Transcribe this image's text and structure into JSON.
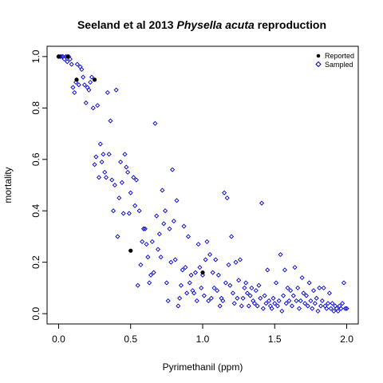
{
  "chart_data": {
    "type": "scatter",
    "title_prefix": "Seeland et al 2013 ",
    "title_italic": "Physella acuta",
    "title_suffix": " reproduction",
    "xlabel": "Pyrimethanil (ppm)",
    "ylabel": "mortality",
    "xlim": [
      -0.08,
      2.08
    ],
    "ylim": [
      -0.04,
      1.04
    ],
    "xticks": [
      0.0,
      0.5,
      1.0,
      1.5,
      2.0
    ],
    "xtick_labels": [
      "0.0",
      "0.5",
      "1.0",
      "1.5",
      "2.0"
    ],
    "yticks": [
      0.0,
      0.2,
      0.4,
      0.6,
      0.8,
      1.0
    ],
    "ytick_labels": [
      "0.0",
      "0.2",
      "0.4",
      "0.6",
      "0.8",
      "1.0"
    ],
    "legend": {
      "position": "top-right",
      "entries": [
        "Reported",
        "Sampled"
      ]
    },
    "series": [
      {
        "name": "Reported",
        "marker": "filled-circle",
        "color": "#000000",
        "points": [
          [
            0.0,
            1.0
          ],
          [
            0.0625,
            1.0
          ],
          [
            0.125,
            0.91
          ],
          [
            0.25,
            0.91
          ],
          [
            0.5,
            0.245
          ],
          [
            1.0,
            0.16
          ]
        ]
      },
      {
        "name": "Sampled",
        "marker": "open-diamond",
        "color": "#0000cc",
        "points": [
          [
            0.0,
            1.0
          ],
          [
            0.01,
            1.0
          ],
          [
            0.02,
            1.0
          ],
          [
            0.03,
            1.0
          ],
          [
            0.04,
            0.99
          ],
          [
            0.05,
            1.0
          ],
          [
            0.06,
            0.98
          ],
          [
            0.07,
            1.0
          ],
          [
            0.08,
            0.99
          ],
          [
            0.09,
            0.97
          ],
          [
            0.1,
            0.88
          ],
          [
            0.11,
            0.86
          ],
          [
            0.12,
            0.9
          ],
          [
            0.13,
            0.97
          ],
          [
            0.14,
            0.89
          ],
          [
            0.15,
            0.96
          ],
          [
            0.16,
            0.95
          ],
          [
            0.17,
            0.92
          ],
          [
            0.18,
            0.89
          ],
          [
            0.19,
            0.82
          ],
          [
            0.2,
            0.88
          ],
          [
            0.21,
            0.87
          ],
          [
            0.22,
            0.9
          ],
          [
            0.23,
            0.92
          ],
          [
            0.24,
            0.8
          ],
          [
            0.25,
            0.58
          ],
          [
            0.26,
            0.61
          ],
          [
            0.27,
            0.81
          ],
          [
            0.28,
            0.53
          ],
          [
            0.29,
            0.66
          ],
          [
            0.3,
            0.59
          ],
          [
            0.31,
            0.62
          ],
          [
            0.32,
            0.55
          ],
          [
            0.33,
            0.53
          ],
          [
            0.34,
            0.86
          ],
          [
            0.35,
            0.62
          ],
          [
            0.36,
            0.75
          ],
          [
            0.37,
            0.52
          ],
          [
            0.38,
            0.4
          ],
          [
            0.39,
            0.5
          ],
          [
            0.4,
            0.87
          ],
          [
            0.41,
            0.3
          ],
          [
            0.42,
            0.45
          ],
          [
            0.43,
            0.59
          ],
          [
            0.44,
            0.51
          ],
          [
            0.45,
            0.39
          ],
          [
            0.46,
            0.62
          ],
          [
            0.47,
            0.57
          ],
          [
            0.48,
            0.55
          ],
          [
            0.49,
            0.39
          ],
          [
            0.5,
            0.47
          ],
          [
            0.52,
            0.53
          ],
          [
            0.53,
            0.42
          ],
          [
            0.54,
            0.52
          ],
          [
            0.55,
            0.11
          ],
          [
            0.56,
            0.4
          ],
          [
            0.57,
            0.19
          ],
          [
            0.58,
            0.28
          ],
          [
            0.59,
            0.33
          ],
          [
            0.6,
            0.33
          ],
          [
            0.61,
            0.27
          ],
          [
            0.62,
            0.22
          ],
          [
            0.63,
            0.12
          ],
          [
            0.64,
            0.15
          ],
          [
            0.65,
            0.28
          ],
          [
            0.66,
            0.16
          ],
          [
            0.67,
            0.74
          ],
          [
            0.68,
            0.38
          ],
          [
            0.69,
            0.25
          ],
          [
            0.7,
            0.31
          ],
          [
            0.71,
            0.22
          ],
          [
            0.72,
            0.48
          ],
          [
            0.73,
            0.35
          ],
          [
            0.74,
            0.4
          ],
          [
            0.75,
            0.12
          ],
          [
            0.76,
            0.05
          ],
          [
            0.77,
            0.33
          ],
          [
            0.78,
            0.2
          ],
          [
            0.79,
            0.56
          ],
          [
            0.8,
            0.36
          ],
          [
            0.81,
            0.21
          ],
          [
            0.82,
            0.44
          ],
          [
            0.83,
            0.03
          ],
          [
            0.84,
            0.06
          ],
          [
            0.85,
            0.11
          ],
          [
            0.86,
            0.17
          ],
          [
            0.87,
            0.34
          ],
          [
            0.88,
            0.18
          ],
          [
            0.89,
            0.08
          ],
          [
            0.9,
            0.3
          ],
          [
            0.91,
            0.12
          ],
          [
            0.92,
            0.15
          ],
          [
            0.93,
            0.09
          ],
          [
            0.94,
            0.08
          ],
          [
            0.95,
            0.16
          ],
          [
            0.96,
            0.05
          ],
          [
            0.97,
            0.27
          ],
          [
            0.98,
            0.18
          ],
          [
            0.99,
            0.1
          ],
          [
            1.0,
            0.15
          ],
          [
            1.01,
            0.07
          ],
          [
            1.02,
            0.21
          ],
          [
            1.03,
            0.28
          ],
          [
            1.04,
            0.05
          ],
          [
            1.05,
            0.23
          ],
          [
            1.06,
            0.06
          ],
          [
            1.07,
            0.16
          ],
          [
            1.08,
            0.1
          ],
          [
            1.09,
            0.21
          ],
          [
            1.1,
            0.09
          ],
          [
            1.11,
            0.15
          ],
          [
            1.12,
            0.03
          ],
          [
            1.13,
            0.06
          ],
          [
            1.14,
            0.05
          ],
          [
            1.15,
            0.47
          ],
          [
            1.16,
            0.12
          ],
          [
            1.17,
            0.45
          ],
          [
            1.18,
            0.19
          ],
          [
            1.19,
            0.11
          ],
          [
            1.2,
            0.3
          ],
          [
            1.21,
            0.08
          ],
          [
            1.22,
            0.04
          ],
          [
            1.23,
            0.2
          ],
          [
            1.24,
            0.06
          ],
          [
            1.25,
            0.13
          ],
          [
            1.26,
            0.21
          ],
          [
            1.27,
            0.03
          ],
          [
            1.28,
            0.06
          ],
          [
            1.29,
            0.1
          ],
          [
            1.3,
            0.12
          ],
          [
            1.31,
            0.08
          ],
          [
            1.32,
            0.03
          ],
          [
            1.33,
            0.07
          ],
          [
            1.34,
            0.1
          ],
          [
            1.35,
            0.05
          ],
          [
            1.36,
            0.04
          ],
          [
            1.37,
            0.09
          ],
          [
            1.38,
            0.03
          ],
          [
            1.39,
            0.11
          ],
          [
            1.4,
            0.06
          ],
          [
            1.41,
            0.43
          ],
          [
            1.42,
            0.02
          ],
          [
            1.43,
            0.07
          ],
          [
            1.44,
            0.04
          ],
          [
            1.45,
            0.17
          ],
          [
            1.46,
            0.05
          ],
          [
            1.47,
            0.03
          ],
          [
            1.48,
            0.02
          ],
          [
            1.49,
            0.06
          ],
          [
            1.5,
            0.04
          ],
          [
            1.51,
            0.12
          ],
          [
            1.52,
            0.03
          ],
          [
            1.53,
            0.05
          ],
          [
            1.54,
            0.23
          ],
          [
            1.55,
            0.01
          ],
          [
            1.56,
            0.07
          ],
          [
            1.57,
            0.17
          ],
          [
            1.58,
            0.04
          ],
          [
            1.59,
            0.1
          ],
          [
            1.6,
            0.05
          ],
          [
            1.61,
            0.09
          ],
          [
            1.62,
            0.03
          ],
          [
            1.63,
            0.07
          ],
          [
            1.64,
            0.18
          ],
          [
            1.65,
            0.05
          ],
          [
            1.66,
            0.1
          ],
          [
            1.67,
            0.02
          ],
          [
            1.68,
            0.05
          ],
          [
            1.69,
            0.14
          ],
          [
            1.7,
            0.08
          ],
          [
            1.71,
            0.04
          ],
          [
            1.72,
            0.07
          ],
          [
            1.73,
            0.03
          ],
          [
            1.74,
            0.12
          ],
          [
            1.75,
            0.05
          ],
          [
            1.76,
            0.02
          ],
          [
            1.77,
            0.09
          ],
          [
            1.78,
            0.04
          ],
          [
            1.79,
            0.06
          ],
          [
            1.8,
            0.01
          ],
          [
            1.81,
            0.1
          ],
          [
            1.82,
            0.03
          ],
          [
            1.83,
            0.05
          ],
          [
            1.84,
            0.1
          ],
          [
            1.85,
            0.03
          ],
          [
            1.86,
            0.02
          ],
          [
            1.87,
            0.04
          ],
          [
            1.88,
            0.08
          ],
          [
            1.89,
            0.02
          ],
          [
            1.9,
            0.04
          ],
          [
            1.91,
            0.01
          ],
          [
            1.92,
            0.03
          ],
          [
            1.93,
            0.02
          ],
          [
            1.94,
            0.01
          ],
          [
            1.95,
            0.03
          ],
          [
            1.96,
            0.02
          ],
          [
            1.97,
            0.04
          ],
          [
            1.98,
            0.12
          ],
          [
            1.99,
            0.02
          ],
          [
            2.0,
            0.02
          ]
        ]
      }
    ]
  }
}
